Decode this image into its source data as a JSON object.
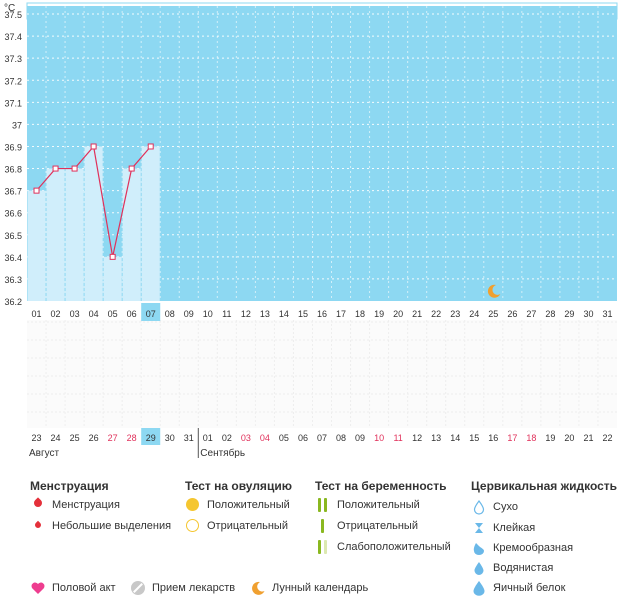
{
  "chart_data": {
    "type": "line",
    "ylabel": "°C",
    "ylim": [
      36.2,
      37.55
    ],
    "yticks": [
      36.2,
      36.3,
      36.4,
      36.5,
      36.6,
      36.7,
      36.8,
      36.9,
      37,
      37.1,
      37.2,
      37.3,
      37.4,
      37.5
    ],
    "top_days": [
      "01",
      "02",
      "03",
      "04",
      "05",
      "06",
      "07",
      "08",
      "09",
      "10",
      "11",
      "12",
      "13",
      "14",
      "15",
      "16",
      "17",
      "18",
      "19",
      "20",
      "21",
      "22",
      "23",
      "24",
      "25",
      "26",
      "27",
      "28",
      "29",
      "30",
      "31"
    ],
    "bottom_dates": [
      "23",
      "24",
      "25",
      "26",
      "27",
      "28",
      "29",
      "30",
      "31",
      "01",
      "02",
      "03",
      "04",
      "05",
      "06",
      "07",
      "08",
      "09",
      "10",
      "11",
      "12",
      "13",
      "14",
      "15",
      "16",
      "17",
      "18",
      "19",
      "20",
      "21",
      "22"
    ],
    "bottom_date_colors": [
      "#333333",
      "#333333",
      "#333333",
      "#333333",
      "#e0305a",
      "#e0305a",
      "#333333",
      "#333333",
      "#333333",
      "#333333",
      "#333333",
      "#e0305a",
      "#e0305a",
      "#333333",
      "#333333",
      "#333333",
      "#333333",
      "#333333",
      "#e0305a",
      "#e0305a",
      "#333333",
      "#333333",
      "#333333",
      "#333333",
      "#333333",
      "#e0305a",
      "#e0305a",
      "#333333",
      "#333333",
      "#333333",
      "#333333"
    ],
    "highlight_index": 6,
    "month_labels": [
      {
        "label": "Август",
        "start_index": 0
      },
      {
        "label": "Сентябрь",
        "start_index": 9
      }
    ],
    "series": [
      {
        "values": [
          36.7,
          36.8,
          36.8,
          36.9,
          36.4,
          36.8,
          36.9
        ]
      }
    ],
    "moon_marker_index": 24,
    "colors": {
      "plot_bg": "#8dd8f2",
      "bar_fill": "#d0eefb",
      "line": "#e0305a",
      "grid": "#ffffff",
      "highlight": "#8dd8f2"
    }
  },
  "legend": {
    "menstruation": {
      "title": "Менструация",
      "items": [
        "Менструация",
        "Небольшие выделения"
      ],
      "color": "#e4303a"
    },
    "ovulation": {
      "title": "Тест на овуляцию",
      "items": [
        "Положительный",
        "Отрицательный"
      ],
      "color": "#f5c630"
    },
    "pregnancy": {
      "title": "Тест на беременность",
      "items": [
        "Положительный",
        "Отрицательный",
        "Слабоположительный"
      ],
      "color": "#8ab820"
    },
    "cervical": {
      "title": "Цервикальная жидкость",
      "items": [
        "Сухо",
        "Клейкая",
        "Кремообразная",
        "Водянистая",
        "Яичный белок"
      ],
      "color": "#6ab8e8"
    },
    "bottom": [
      {
        "label": "Половой акт",
        "icon": "heart-icon",
        "color": "#ee3d8f"
      },
      {
        "label": "Прием лекарств",
        "icon": "pill-icon",
        "color": "#c8c8c8"
      },
      {
        "label": "Лунный календарь",
        "icon": "moon-icon",
        "color": "#f0a030"
      }
    ]
  }
}
